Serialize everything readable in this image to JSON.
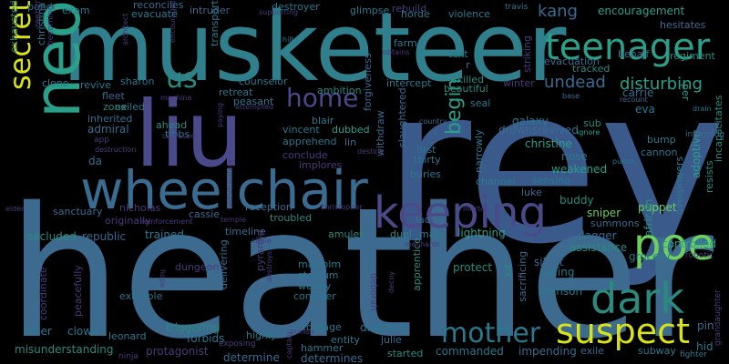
{
  "background": "#000000",
  "words": [
    {
      "text": "rey",
      "color": "#3b5a8c"
    },
    {
      "text": "heather",
      "color": "#3d6b90"
    },
    {
      "text": "musketeer",
      "color": "#2f7f8c"
    },
    {
      "text": "neo",
      "color": "#2aa08a"
    },
    {
      "text": "liu",
      "color": "#4a4a8a"
    },
    {
      "text": "wheelchair",
      "color": "#3a6b90"
    },
    {
      "text": "keeping",
      "color": "#4a4a8a"
    },
    {
      "text": "poe",
      "color": "#6ccf5e"
    },
    {
      "text": "dark",
      "color": "#2a8a7d"
    },
    {
      "text": "teenager",
      "color": "#2aa08a"
    },
    {
      "text": "suspect",
      "color": "#d8e219"
    },
    {
      "text": "secret",
      "color": "#d8e219"
    },
    {
      "text": "mother",
      "color": "#2a788e"
    },
    {
      "text": "home",
      "color": "#4a4a8a"
    },
    {
      "text": "us",
      "color": "#2a8a7d"
    },
    {
      "text": "begin",
      "color": "#2aa08a"
    },
    {
      "text": "undead",
      "color": "#3d6b90"
    },
    {
      "text": "disturbing",
      "color": "#2aa08a"
    },
    {
      "text": "kang",
      "color": "#3a6b90"
    },
    {
      "text": "encouragement",
      "color": "#2aa08a"
    },
    {
      "text": "hesitates",
      "color": "#3d6b90"
    },
    {
      "text": "regiment",
      "color": "#2a8a7d"
    },
    {
      "text": "behalf",
      "color": "#3a6b90"
    },
    {
      "text": "evacuation",
      "color": "#3d6b90"
    },
    {
      "text": "tracked",
      "color": "#2a8a7d"
    },
    {
      "text": "carrie",
      "color": "#3a6b90"
    },
    {
      "text": "eva",
      "color": "#2a788e"
    },
    {
      "text": "adoptive",
      "color": "#2aa08a"
    },
    {
      "text": "resists",
      "color": "#2a8a7d"
    },
    {
      "text": "incapacitates",
      "color": "#2a8a7d"
    },
    {
      "text": "overpowers",
      "color": "#2a788e"
    },
    {
      "text": "informing",
      "color": "#3d6b90"
    },
    {
      "text": "drain",
      "color": "#2a788e"
    },
    {
      "text": "per",
      "color": "#2aa08a"
    },
    {
      "text": "recount",
      "color": "#3d6b90"
    },
    {
      "text": "base",
      "color": "#3a6b90"
    },
    {
      "text": "cannon",
      "color": "#2a788e"
    },
    {
      "text": "bump",
      "color": "#2a788e"
    },
    {
      "text": "ignore",
      "color": "#2aa08a"
    },
    {
      "text": "punch",
      "color": "#2a788e"
    },
    {
      "text": "sub",
      "color": "#2a8a7d"
    },
    {
      "text": "galaxy",
      "color": "#2a788e"
    },
    {
      "text": "drownsrevived",
      "color": "#3d6b90"
    },
    {
      "text": "christine",
      "color": "#2aa08a"
    },
    {
      "text": "nose",
      "color": "#2a788e"
    },
    {
      "text": "weakened",
      "color": "#2aa08a"
    },
    {
      "text": "sensing",
      "color": "#2a788e"
    },
    {
      "text": "luke",
      "color": "#3a6b90"
    },
    {
      "text": "channel",
      "color": "#2a788e"
    },
    {
      "text": "puppet",
      "color": "#6ccf5e"
    },
    {
      "text": "african",
      "color": "#2a8a7d"
    },
    {
      "text": "buddy",
      "color": "#2a8a7d"
    },
    {
      "text": "sniper",
      "color": "#6ccf5e"
    },
    {
      "text": "summons",
      "color": "#3a6b90"
    },
    {
      "text": "dagger",
      "color": "#3a6b90"
    },
    {
      "text": "controlled",
      "color": "#2aa08a"
    },
    {
      "text": "assistance",
      "color": "#2a8a7d"
    },
    {
      "text": "grocery",
      "color": "#2a788e"
    },
    {
      "text": "robotic",
      "color": "#4a3a7a"
    },
    {
      "text": "silent",
      "color": "#3d6b90"
    },
    {
      "text": "racing",
      "color": "#2a788e"
    },
    {
      "text": "kit",
      "color": "#2a8a7d"
    },
    {
      "text": "sacrificing",
      "color": "#3a6b90"
    },
    {
      "text": "protect",
      "color": "#2a8a7d"
    },
    {
      "text": "johnson",
      "color": "#2a788e"
    },
    {
      "text": "pin",
      "color": "#3a6b90"
    },
    {
      "text": "hid",
      "color": "#2a788e"
    },
    {
      "text": "grandaughter",
      "color": "#4a3a7a"
    },
    {
      "text": "fighter",
      "color": "#2a788e"
    },
    {
      "text": "exile",
      "color": "#3d6b90"
    },
    {
      "text": "subway",
      "color": "#2a788e"
    },
    {
      "text": "impending",
      "color": "#3d6b90"
    },
    {
      "text": "commanded",
      "color": "#2a788e"
    },
    {
      "text": "started",
      "color": "#2a8a7d"
    },
    {
      "text": "julie",
      "color": "#3a6b90"
    },
    {
      "text": "directed",
      "color": "#2a788e"
    },
    {
      "text": "apprentice",
      "color": "#2a8a7d"
    },
    {
      "text": "deborah",
      "color": "#4a3a7a"
    },
    {
      "text": "decoy",
      "color": "#4a3a7a"
    },
    {
      "text": "entity",
      "color": "#2a788e"
    },
    {
      "text": "hammer",
      "color": "#2a788e"
    },
    {
      "text": "courage",
      "color": "#2a788e"
    },
    {
      "text": "determines",
      "color": "#3d6b90"
    },
    {
      "text": "determine",
      "color": "#3a6b90"
    },
    {
      "text": "punish",
      "color": "#4a3a7a"
    },
    {
      "text": "captain",
      "color": "#4a3a7a"
    },
    {
      "text": "highly",
      "color": "#2a788e"
    },
    {
      "text": "exposing",
      "color": "#4a3a7a"
    },
    {
      "text": "forbids",
      "color": "#2a788e"
    },
    {
      "text": "triggering",
      "color": "#2a8a7d"
    },
    {
      "text": "protagonist",
      "color": "#4a3a7a"
    },
    {
      "text": "leonard",
      "color": "#2a788e"
    },
    {
      "text": "ninja",
      "color": "#4a3a7a"
    },
    {
      "text": "clown",
      "color": "#2a788e"
    },
    {
      "text": "misunderstanding",
      "color": "#2a8a7d"
    },
    {
      "text": "inner",
      "color": "#2a788e"
    },
    {
      "text": "coordinate",
      "color": "#4a3a7a"
    },
    {
      "text": "peacefully",
      "color": "#4a3a7a"
    },
    {
      "text": "example",
      "color": "#2a788e"
    },
    {
      "text": "hope",
      "color": "#4a3a7a"
    },
    {
      "text": "dungeon",
      "color": "#4a3a7a"
    },
    {
      "text": "trained",
      "color": "#2a788e"
    },
    {
      "text": "republic",
      "color": "#3a6b90"
    },
    {
      "text": "secluded",
      "color": "#2a8a7d"
    },
    {
      "text": "originally",
      "color": "#4a3a7a"
    },
    {
      "text": "sanctuary",
      "color": "#3a6b90"
    },
    {
      "text": "nicholas",
      "color": "#4a3a7a"
    },
    {
      "text": "cassie",
      "color": "#3a6b90"
    },
    {
      "text": "reinforcement",
      "color": "#4a3a7a"
    },
    {
      "text": "temple",
      "color": "#4a3a7a"
    },
    {
      "text": "timeline",
      "color": "#3a6b90"
    },
    {
      "text": "cable",
      "color": "#4a3a7a"
    },
    {
      "text": "pyramid",
      "color": "#4a3a7a"
    },
    {
      "text": "delivering",
      "color": "#3a6b90"
    },
    {
      "text": "destroys",
      "color": "#4a3a7a"
    },
    {
      "text": "malcolm",
      "color": "#2a788e"
    },
    {
      "text": "stadium",
      "color": "#2a788e"
    },
    {
      "text": "wendy",
      "color": "#2a788e"
    },
    {
      "text": "consider",
      "color": "#2a788e"
    },
    {
      "text": "mechanic",
      "color": "#4a3a7a"
    },
    {
      "text": "duel",
      "color": "#2a8a7d"
    },
    {
      "text": "map",
      "color": "#2a788e"
    },
    {
      "text": "lightning",
      "color": "#2aa08a"
    },
    {
      "text": "amulet",
      "color": "#2a8a7d"
    },
    {
      "text": "troubled",
      "color": "#2a8a7d"
    },
    {
      "text": "reception",
      "color": "#3a6b90"
    },
    {
      "text": "christopher",
      "color": "#4a3a7a"
    },
    {
      "text": "lao",
      "color": "#3a6b90"
    },
    {
      "text": "mortal",
      "color": "#4a3a7a"
    },
    {
      "text": "buries",
      "color": "#2a788e"
    },
    {
      "text": "thirty",
      "color": "#2a788e"
    },
    {
      "text": "first",
      "color": "#2a788e"
    },
    {
      "text": "narrowly",
      "color": "#2a788e"
    },
    {
      "text": "slaughtered",
      "color": "#3a6b90"
    },
    {
      "text": "withdraw",
      "color": "#3a6b90"
    },
    {
      "text": "destiny",
      "color": "#4a3a7a"
    },
    {
      "text": "conclude",
      "color": "#4a3a7a"
    },
    {
      "text": "implores",
      "color": "#4a3a7a"
    },
    {
      "text": "dubbed",
      "color": "#2aa08a"
    },
    {
      "text": "lin",
      "color": "#3a6b90"
    },
    {
      "text": "apprehend",
      "color": "#2a788e"
    },
    {
      "text": "vincent",
      "color": "#2a788e"
    },
    {
      "text": "blair",
      "color": "#2a788e"
    },
    {
      "text": "da",
      "color": "#3a6b90"
    },
    {
      "text": "ahead",
      "color": "#2a8a7d"
    },
    {
      "text": "tibbs",
      "color": "#2a788e"
    },
    {
      "text": "confused",
      "color": "#4a3a7a"
    },
    {
      "text": "app",
      "color": "#4a3a7a"
    },
    {
      "text": "destruction",
      "color": "#4a3a7a"
    },
    {
      "text": "paying",
      "color": "#4a3a7a"
    },
    {
      "text": "unfortunately",
      "color": "#4a3a7a"
    },
    {
      "text": "elder",
      "color": "#4a3a7a"
    },
    {
      "text": "inherited",
      "color": "#3a6b90"
    },
    {
      "text": "admiral",
      "color": "#3a6b90"
    },
    {
      "text": "exiled",
      "color": "#2a788e"
    },
    {
      "text": "zone",
      "color": "#2a8a7d"
    },
    {
      "text": "fleet",
      "color": "#3a6b90"
    },
    {
      "text": "attempted",
      "color": "#4a3a7a"
    },
    {
      "text": "machine",
      "color": "#4a3a7a"
    },
    {
      "text": "retreat",
      "color": "#2a788e"
    },
    {
      "text": "peasant",
      "color": "#2a788e"
    },
    {
      "text": "counselor",
      "color": "#2a788e"
    },
    {
      "text": "ambition",
      "color": "#2a8a7d"
    },
    {
      "text": "forgiveness",
      "color": "#3a6b90"
    },
    {
      "text": "intercept",
      "color": "#2a788e"
    },
    {
      "text": "skilled",
      "color": "#2a8a7d"
    },
    {
      "text": "beautiful",
      "color": "#2a8a7d"
    },
    {
      "text": "winter",
      "color": "#4a3a7a"
    },
    {
      "text": "seal",
      "color": "#2a788e"
    },
    {
      "text": "country",
      "color": "#3a6b90"
    },
    {
      "text": "c",
      "color": "#3a6b90"
    },
    {
      "text": "r",
      "color": "#3a6b90"
    },
    {
      "text": "text",
      "color": "#2a788e"
    },
    {
      "text": "striking",
      "color": "#4a3a7a"
    },
    {
      "text": "farm",
      "color": "#2a788e"
    },
    {
      "text": "obtains",
      "color": "#4a3a7a"
    },
    {
      "text": "hill",
      "color": "#2a788e"
    },
    {
      "text": "glimpse",
      "color": "#2a788e"
    },
    {
      "text": "horde",
      "color": "#2a788e"
    },
    {
      "text": "violence",
      "color": "#2a788e"
    },
    {
      "text": "travis",
      "color": "#2a788e"
    },
    {
      "text": "rebuild",
      "color": "#4a3a7a"
    },
    {
      "text": "supporting",
      "color": "#4a3a7a"
    },
    {
      "text": "destroyer",
      "color": "#2a788e"
    },
    {
      "text": "intruder",
      "color": "#3a6b90"
    },
    {
      "text": "transport",
      "color": "#2a788e"
    },
    {
      "text": "encourages",
      "color": "#4a3a7a"
    },
    {
      "text": "evacuate",
      "color": "#2a788e"
    },
    {
      "text": "reconciles",
      "color": "#3a6b90"
    },
    {
      "text": "architect",
      "color": "#4a3a7a"
    },
    {
      "text": "revive",
      "color": "#2a788e"
    },
    {
      "text": "sharon",
      "color": "#2a788e"
    },
    {
      "text": "clone",
      "color": "#2a788e"
    },
    {
      "text": "christina",
      "color": "#2a788e"
    },
    {
      "text": "exhausted",
      "color": "#2a8a7d"
    },
    {
      "text": "becoming",
      "color": "#4a3a7a"
    },
    {
      "text": "pond",
      "color": "#2a788e"
    },
    {
      "text": "exam",
      "color": "#2a788e"
    },
    {
      "text": "zephyr",
      "color": "#4a3a7a"
    }
  ]
}
